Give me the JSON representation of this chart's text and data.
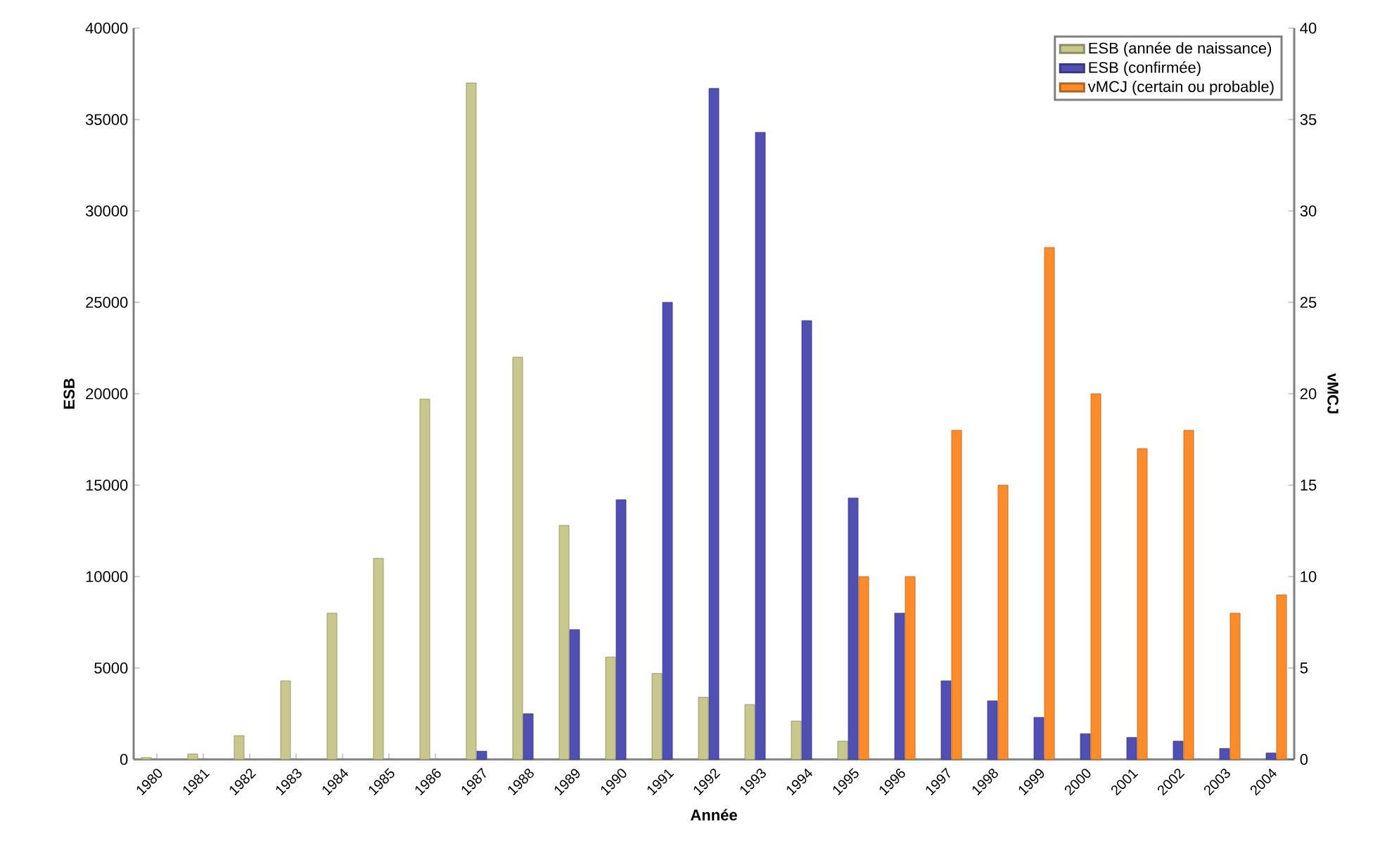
{
  "chart_data": {
    "type": "bar",
    "xlabel": "Année",
    "ylabel": "ESB",
    "y2label": "vMCJ",
    "categories": [
      "1980",
      "1981",
      "1982",
      "1983",
      "1984",
      "1985",
      "1986",
      "1987",
      "1988",
      "1989",
      "1990",
      "1991",
      "1992",
      "1993",
      "1994",
      "1995",
      "1996",
      "1997",
      "1998",
      "1999",
      "2000",
      "2001",
      "2002",
      "2003",
      "2004"
    ],
    "series": [
      {
        "name": "ESB (année de naissance)",
        "color": "#c8c88c",
        "values": [
          100,
          300,
          1300,
          4300,
          8000,
          11000,
          19700,
          37000,
          22000,
          12800,
          5600,
          4700,
          3400,
          3000,
          2100,
          1000,
          null,
          null,
          null,
          null,
          null,
          null,
          null,
          null,
          null
        ]
      },
      {
        "name": "ESB (confirmée)",
        "color": "#5050b4",
        "values": [
          null,
          null,
          null,
          null,
          null,
          null,
          null,
          450,
          2500,
          7100,
          14200,
          25000,
          36700,
          34300,
          24000,
          14300,
          8000,
          4300,
          3200,
          2300,
          1400,
          1200,
          1000,
          600,
          350
        ]
      },
      {
        "name": "vMCJ (certain ou probable)",
        "color": "#ff8c28",
        "axis": "y2",
        "values": [
          null,
          null,
          null,
          null,
          null,
          null,
          null,
          null,
          null,
          null,
          null,
          null,
          null,
          null,
          null,
          10,
          10,
          18,
          15,
          28,
          20,
          17,
          18,
          8,
          9
        ]
      }
    ],
    "ylim": [
      0,
      40000
    ],
    "yticks": [
      0,
      5000,
      10000,
      15000,
      20000,
      25000,
      30000,
      35000,
      40000
    ],
    "y2lim": [
      0,
      40
    ],
    "y2ticks": [
      0,
      5,
      10,
      15,
      20,
      25,
      30,
      35,
      40
    ],
    "legend": "top right"
  }
}
